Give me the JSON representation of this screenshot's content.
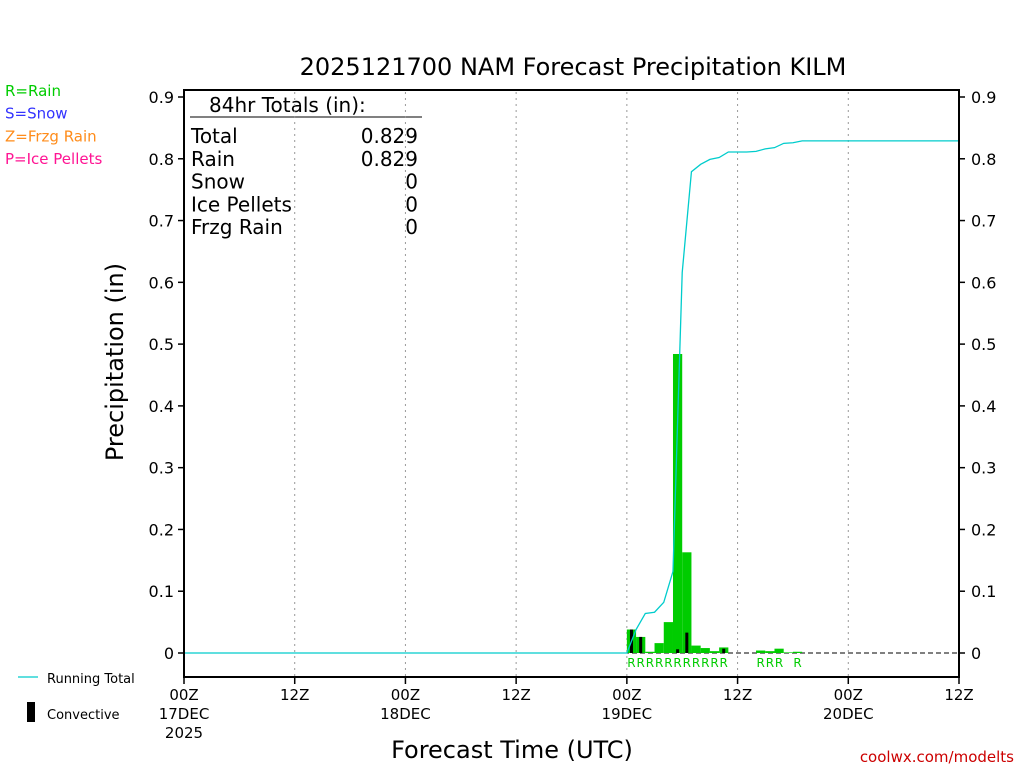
{
  "chart_data": {
    "type": "bar",
    "title": "2025121700 NAM Forecast Precipitation KILM",
    "xlabel": "Forecast Time (UTC)",
    "ylabel": "Precipitation (in)",
    "ylim": [
      0,
      0.9
    ],
    "xlim": [
      0,
      84
    ],
    "y_ticks": [
      "0",
      "0.1",
      "0.2",
      "0.3",
      "0.4",
      "0.5",
      "0.6",
      "0.7",
      "0.8",
      "0.9"
    ],
    "x_ticks": [
      {
        "h": 0,
        "lines": [
          "00Z",
          "17DEC",
          "2025"
        ]
      },
      {
        "h": 12,
        "lines": [
          "12Z"
        ]
      },
      {
        "h": 24,
        "lines": [
          "00Z",
          "18DEC"
        ]
      },
      {
        "h": 36,
        "lines": [
          "12Z"
        ]
      },
      {
        "h": 48,
        "lines": [
          "00Z",
          "19DEC"
        ]
      },
      {
        "h": 60,
        "lines": [
          "12Z"
        ]
      },
      {
        "h": 72,
        "lines": [
          "00Z",
          "20DEC"
        ]
      },
      {
        "h": 84,
        "lines": [
          "12Z"
        ]
      }
    ],
    "grid": "vertical dotted",
    "legend": {
      "type_keys": [
        {
          "label": "R=Rain",
          "color": "#00cc00"
        },
        {
          "label": "S=Snow",
          "color": "#3333ff"
        },
        {
          "label": "Z=Frzg Rain",
          "color": "#ff8c1a"
        },
        {
          "label": "P=Ice Pellets",
          "color": "#ff1493"
        }
      ],
      "series_keys": [
        {
          "label": "Running Total",
          "color": "#00cccc"
        },
        {
          "label": "Convective",
          "color": "#000000"
        }
      ]
    },
    "totals_box": {
      "header": "84hr Totals (in):",
      "rows": [
        {
          "label": "Total",
          "value": "0.829"
        },
        {
          "label": "Rain",
          "value": "0.829"
        },
        {
          "label": "Snow",
          "value": "0"
        },
        {
          "label": "Ice Pellets",
          "value": "0"
        },
        {
          "label": "Frzg Rain",
          "value": "0"
        }
      ]
    },
    "series": [
      {
        "name": "Rain",
        "color": "#00cc00",
        "hours": [
          49,
          50,
          51,
          52,
          53,
          54,
          55,
          56,
          57,
          58,
          59,
          63,
          64,
          65,
          66,
          67
        ],
        "values": [
          0.038,
          0.026,
          0.002,
          0.016,
          0.05,
          0.484,
          0.163,
          0.012,
          0.008,
          0.003,
          0.009,
          0.004,
          0.003,
          0.007,
          0.001,
          0.002
        ]
      },
      {
        "name": "Convective",
        "color": "#000000",
        "hours": [
          49,
          50,
          54,
          55,
          59
        ],
        "values": [
          0.038,
          0.026,
          0.006,
          0.033,
          0.007
        ]
      },
      {
        "name": "Running Total",
        "color": "#00cccc",
        "hours": [
          0,
          48,
          49,
          50,
          51,
          52,
          53,
          54,
          55,
          56,
          57,
          58,
          59,
          60,
          61,
          62,
          63,
          64,
          65,
          66,
          67,
          84
        ],
        "values": [
          0,
          0,
          0.038,
          0.064,
          0.066,
          0.082,
          0.132,
          0.616,
          0.779,
          0.791,
          0.799,
          0.802,
          0.811,
          0.811,
          0.811,
          0.812,
          0.816,
          0.818,
          0.825,
          0.826,
          0.829,
          0.829
        ]
      }
    ],
    "type_labels": [
      {
        "hour": 49,
        "text": "R"
      },
      {
        "hour": 50,
        "text": "R"
      },
      {
        "hour": 51,
        "text": "R"
      },
      {
        "hour": 52,
        "text": "R"
      },
      {
        "hour": 53,
        "text": "R"
      },
      {
        "hour": 54,
        "text": "R"
      },
      {
        "hour": 55,
        "text": "R"
      },
      {
        "hour": 56,
        "text": "R"
      },
      {
        "hour": 57,
        "text": "R"
      },
      {
        "hour": 58,
        "text": "R"
      },
      {
        "hour": 59,
        "text": "R"
      },
      {
        "hour": 63,
        "text": "R"
      },
      {
        "hour": 64,
        "text": "R"
      },
      {
        "hour": 65,
        "text": "R"
      },
      {
        "hour": 67,
        "text": "R"
      }
    ]
  },
  "footer": {
    "site": "coolwx.com/modelts"
  }
}
